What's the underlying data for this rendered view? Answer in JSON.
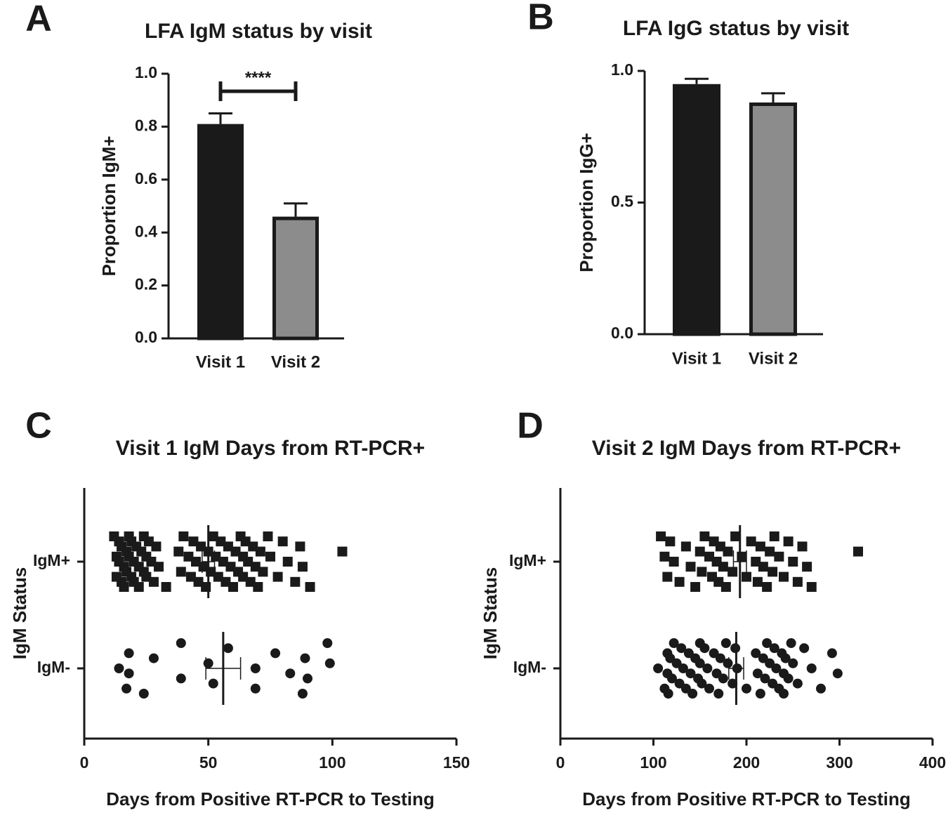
{
  "chart_data": [
    {
      "type": "bar",
      "panel": "A",
      "title": "LFA IgM status by visit",
      "y_label": "Proportion IgM+",
      "categories": [
        "Visit 1",
        "Visit 2"
      ],
      "values": [
        0.81,
        0.46
      ],
      "errors": [
        0.04,
        0.05
      ],
      "colors": [
        "#1a1a1a",
        "#8c8c8c"
      ],
      "annotation": "****",
      "ylim": [
        0,
        1.0
      ],
      "yticks": [
        {
          "value": 0,
          "label": "0.0"
        },
        0.2,
        0.4,
        0.6,
        0.8,
        {
          "value": 1.0,
          "label": "1.0"
        }
      ]
    },
    {
      "type": "bar",
      "panel": "B",
      "title": "LFA IgG status by visit",
      "y_label": "Proportion IgG+",
      "categories": [
        "Visit 1",
        "Visit 2"
      ],
      "values": [
        0.95,
        0.88
      ],
      "errors": [
        0.02,
        0.035
      ],
      "colors": [
        "#1a1a1a",
        "#8c8c8c"
      ],
      "ylim": [
        0,
        1.0
      ],
      "yticks": [
        {
          "value": 0,
          "label": "0.0"
        },
        0.5,
        {
          "value": 1.0,
          "label": "1.0"
        }
      ]
    },
    {
      "type": "strip",
      "panel": "C",
      "title": "Visit 1 IgM Days from RT-PCR+",
      "x_label": "Days from Positive RT-PCR to Testing",
      "y_label": "IgM Status",
      "categories": [
        "IgM+",
        "IgM-"
      ],
      "markers": [
        "square",
        "circle"
      ],
      "color": "#1a1a1a",
      "groups": [
        {
          "values": [
            12,
            13,
            13,
            14,
            14,
            15,
            15,
            16,
            16,
            17,
            17,
            18,
            18,
            19,
            19,
            20,
            20,
            21,
            22,
            22,
            23,
            24,
            24,
            25,
            25,
            26,
            27,
            28,
            29,
            30,
            33,
            38,
            39,
            40,
            42,
            43,
            44,
            45,
            46,
            47,
            48,
            49,
            50,
            51,
            52,
            53,
            54,
            55,
            56,
            57,
            58,
            59,
            60,
            61,
            62,
            63,
            64,
            64,
            65,
            66,
            67,
            68,
            69,
            70,
            71,
            72,
            74,
            75,
            78,
            80,
            82,
            85,
            87,
            88,
            91,
            104
          ],
          "mean": 50,
          "error": 2.5
        },
        {
          "values": [
            14,
            17,
            18,
            18,
            24,
            28,
            39,
            39,
            50,
            52,
            58,
            69,
            69,
            77,
            83,
            88,
            89,
            90,
            98,
            99
          ],
          "mean": 56,
          "error": 7
        }
      ],
      "xlim": [
        0,
        150
      ],
      "xticks": [
        0,
        50,
        100,
        150
      ]
    },
    {
      "type": "strip",
      "panel": "D",
      "title": "Visit 2 IgM Days from RT-PCR+",
      "x_label": "Days from Positive RT-PCR to Testing",
      "y_label": "IgM Status",
      "categories": [
        "IgM+",
        "IgM-"
      ],
      "markers": [
        "square",
        "circle"
      ],
      "color": "#1a1a1a",
      "groups": [
        {
          "values": [
            108,
            112,
            115,
            118,
            122,
            128,
            135,
            140,
            145,
            150,
            152,
            155,
            160,
            163,
            165,
            168,
            170,
            172,
            175,
            178,
            180,
            185,
            188,
            195,
            200,
            205,
            210,
            212,
            215,
            218,
            222,
            225,
            228,
            230,
            235,
            240,
            245,
            250,
            255,
            260,
            265,
            270,
            320
          ],
          "mean": 193,
          "error": 7
        },
        {
          "values": [
            105,
            112,
            115,
            115,
            116,
            118,
            120,
            122,
            125,
            128,
            130,
            132,
            135,
            138,
            140,
            142,
            145,
            148,
            150,
            150,
            152,
            155,
            158,
            160,
            165,
            168,
            170,
            172,
            175,
            178,
            180,
            185,
            188,
            190,
            200,
            210,
            212,
            215,
            218,
            220,
            222,
            225,
            228,
            230,
            232,
            235,
            238,
            240,
            240,
            242,
            245,
            248,
            250,
            255,
            262,
            270,
            280,
            292,
            298
          ],
          "mean": 189,
          "error": 8
        }
      ],
      "xlim": [
        0,
        400
      ],
      "xticks": [
        0,
        100,
        200,
        300,
        400
      ]
    }
  ]
}
